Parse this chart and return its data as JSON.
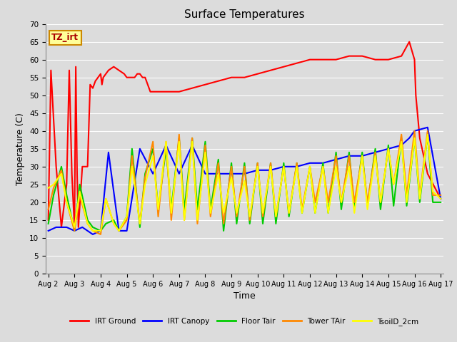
{
  "title": "Surface Temperatures",
  "xlabel": "Time",
  "ylabel": "Temperature (C)",
  "ylim": [
    0,
    70
  ],
  "yticks": [
    0,
    5,
    10,
    15,
    20,
    25,
    30,
    35,
    40,
    45,
    50,
    55,
    60,
    65,
    70
  ],
  "background_color": "#dcdcdc",
  "plot_bg_color": "#dcdcdc",
  "grid_color": "#ffffff",
  "annotation_text": "TZ_irt",
  "annotation_bg": "#ffff99",
  "annotation_border": "#cc8800",
  "series": {
    "IRT Ground": {
      "color": "#ff0000",
      "x": [
        2.0,
        2.1,
        2.3,
        2.5,
        2.7,
        2.8,
        2.9,
        3.0,
        3.05,
        3.1,
        3.15,
        3.3,
        3.5,
        3.6,
        3.7,
        3.8,
        3.9,
        4.0,
        4.05,
        4.1,
        4.3,
        4.5,
        4.7,
        4.9,
        5.0,
        5.1,
        5.3,
        5.4,
        5.5,
        5.6,
        5.7,
        5.9,
        6.0,
        6.1,
        6.2,
        6.3,
        6.5,
        6.7,
        6.9,
        7.0,
        7.5,
        8.0,
        8.5,
        9.0,
        9.5,
        10.0,
        10.5,
        11.0,
        11.5,
        12.0,
        12.5,
        13.0,
        13.5,
        14.0,
        14.5,
        15.0,
        15.5,
        15.8,
        16.0,
        16.05,
        16.2,
        16.5,
        17.0
      ],
      "y": [
        15,
        57,
        30,
        13,
        25,
        57,
        28,
        13,
        58,
        28,
        13,
        30,
        30,
        53,
        52,
        54,
        55,
        56,
        53,
        55,
        57,
        58,
        57,
        56,
        55,
        55,
        55,
        56,
        56,
        55,
        55,
        51,
        51,
        51,
        51,
        51,
        51,
        51,
        51,
        51,
        52,
        53,
        54,
        55,
        55,
        56,
        57,
        58,
        59,
        60,
        60,
        60,
        61,
        61,
        60,
        60,
        61,
        65,
        60,
        50,
        38,
        28,
        21
      ]
    },
    "IRT Canopy": {
      "color": "#0000ff",
      "x": [
        2.0,
        2.3,
        2.7,
        3.0,
        3.3,
        3.7,
        4.0,
        4.3,
        4.7,
        5.0,
        5.5,
        6.0,
        6.5,
        7.0,
        7.5,
        8.0,
        8.5,
        9.0,
        9.5,
        10.0,
        10.5,
        11.0,
        11.5,
        12.0,
        12.5,
        13.0,
        13.5,
        14.0,
        14.5,
        15.0,
        15.5,
        15.8,
        16.0,
        16.5,
        17.0
      ],
      "y": [
        12,
        13,
        13,
        12,
        13,
        11,
        12,
        34,
        12,
        12,
        35,
        28,
        36,
        28,
        36,
        28,
        28,
        28,
        28,
        29,
        29,
        30,
        30,
        31,
        31,
        32,
        33,
        33,
        34,
        35,
        36,
        38,
        40,
        41,
        21
      ]
    },
    "Floor Tair": {
      "color": "#00cc00",
      "x": [
        2.0,
        2.2,
        2.5,
        2.7,
        3.0,
        3.2,
        3.5,
        3.7,
        4.0,
        4.2,
        4.5,
        4.7,
        5.0,
        5.2,
        5.5,
        5.7,
        6.0,
        6.2,
        6.5,
        6.7,
        7.0,
        7.2,
        7.5,
        7.7,
        8.0,
        8.2,
        8.5,
        8.7,
        9.0,
        9.2,
        9.5,
        9.7,
        10.0,
        10.2,
        10.5,
        10.7,
        11.0,
        11.2,
        11.5,
        11.7,
        12.0,
        12.2,
        12.5,
        12.7,
        13.0,
        13.2,
        13.5,
        13.7,
        14.0,
        14.2,
        14.5,
        14.7,
        15.0,
        15.2,
        15.5,
        15.7,
        16.0,
        16.2,
        16.5,
        16.7,
        17.0
      ],
      "y": [
        14,
        22,
        30,
        22,
        12,
        25,
        15,
        13,
        12,
        14,
        15,
        12,
        16,
        35,
        13,
        28,
        35,
        18,
        35,
        18,
        38,
        18,
        38,
        18,
        37,
        18,
        32,
        12,
        31,
        14,
        31,
        14,
        31,
        14,
        31,
        14,
        31,
        16,
        31,
        17,
        30,
        17,
        31,
        17,
        34,
        18,
        34,
        18,
        34,
        19,
        35,
        18,
        36,
        19,
        38,
        19,
        38,
        20,
        39,
        20,
        20
      ]
    },
    "Tower TAir": {
      "color": "#ff8800",
      "x": [
        2.0,
        2.2,
        2.5,
        2.7,
        3.0,
        3.2,
        3.5,
        3.7,
        4.0,
        4.2,
        4.5,
        4.7,
        5.0,
        5.2,
        5.5,
        5.7,
        6.0,
        6.2,
        6.5,
        6.7,
        7.0,
        7.2,
        7.5,
        7.7,
        8.0,
        8.2,
        8.5,
        8.7,
        9.0,
        9.2,
        9.5,
        9.7,
        10.0,
        10.2,
        10.5,
        10.7,
        11.0,
        11.2,
        11.5,
        11.7,
        12.0,
        12.2,
        12.5,
        12.7,
        13.0,
        13.2,
        13.5,
        13.7,
        14.0,
        14.2,
        14.5,
        14.7,
        15.0,
        15.2,
        15.5,
        15.7,
        16.0,
        16.2,
        16.5,
        16.7,
        17.0
      ],
      "y": [
        18,
        24,
        29,
        20,
        12,
        22,
        14,
        12,
        11,
        21,
        14,
        12,
        15,
        33,
        14,
        27,
        37,
        16,
        37,
        15,
        39,
        15,
        38,
        14,
        36,
        16,
        31,
        14,
        30,
        16,
        30,
        15,
        31,
        16,
        31,
        16,
        30,
        17,
        31,
        18,
        30,
        20,
        30,
        20,
        33,
        20,
        33,
        20,
        33,
        20,
        34,
        20,
        35,
        25,
        39,
        22,
        40,
        22,
        40,
        22,
        22
      ]
    },
    "TsoilD_2cm": {
      "color": "#ffff00",
      "x": [
        2.0,
        2.2,
        2.5,
        2.7,
        3.0,
        3.2,
        3.5,
        3.7,
        4.0,
        4.2,
        4.5,
        4.7,
        5.0,
        5.2,
        5.5,
        5.7,
        6.0,
        6.2,
        6.5,
        6.7,
        7.0,
        7.2,
        7.5,
        7.7,
        8.0,
        8.2,
        8.5,
        8.7,
        9.0,
        9.2,
        9.5,
        9.7,
        10.0,
        10.2,
        10.5,
        10.7,
        11.0,
        11.2,
        11.5,
        11.7,
        12.0,
        12.2,
        12.5,
        12.7,
        13.0,
        13.2,
        13.5,
        13.7,
        14.0,
        14.2,
        14.5,
        14.7,
        15.0,
        15.2,
        15.5,
        15.7,
        16.0,
        16.2,
        16.5,
        16.7,
        17.0
      ],
      "y": [
        24,
        25,
        28,
        20,
        13,
        23,
        14,
        12,
        12,
        21,
        14,
        12,
        16,
        30,
        14,
        25,
        33,
        18,
        37,
        17,
        37,
        15,
        37,
        15,
        34,
        17,
        28,
        17,
        27,
        17,
        26,
        16,
        30,
        17,
        30,
        16,
        30,
        17,
        30,
        17,
        30,
        17,
        30,
        17,
        30,
        20,
        30,
        17,
        33,
        18,
        33,
        20,
        35,
        25,
        37,
        20,
        38,
        21,
        39,
        23,
        21
      ]
    }
  },
  "xtick_labels": [
    "Aug 2",
    "Aug 3",
    "Aug 4",
    "Aug 5",
    "Aug 6",
    "Aug 7",
    "Aug 8",
    "Aug 9",
    "Aug 10",
    "Aug 11",
    "Aug 12",
    "Aug 13",
    "Aug 14",
    "Aug 15",
    "Aug 16",
    "Aug 17"
  ],
  "xtick_positions": [
    2,
    3,
    4,
    5,
    6,
    7,
    8,
    9,
    10,
    11,
    12,
    13,
    14,
    15,
    16,
    17
  ],
  "xlim": [
    1.9,
    17.1
  ],
  "legend_entries": [
    "IRT Ground",
    "IRT Canopy",
    "Floor Tair",
    "Tower TAir",
    "TsoilD_2cm"
  ],
  "legend_colors": [
    "#ff0000",
    "#0000ff",
    "#00cc00",
    "#ff8800",
    "#ffff00"
  ]
}
